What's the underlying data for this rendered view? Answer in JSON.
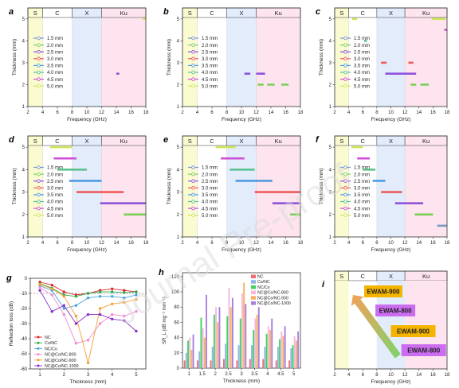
{
  "bands": {
    "labels": [
      "S",
      "C",
      "X",
      "Ku"
    ],
    "ranges": [
      [
        2,
        4
      ],
      [
        4,
        8
      ],
      [
        8,
        12
      ],
      [
        12,
        18
      ]
    ],
    "colors": [
      "#fbfbd2",
      "#ffffff",
      "#e3ecfb",
      "#fde4ee"
    ]
  },
  "freq_axis": {
    "xlabel": "Frequency (GHz)",
    "ticks": [
      2,
      4,
      6,
      8,
      10,
      12,
      14,
      16,
      18
    ],
    "xlim": [
      2,
      18
    ]
  },
  "thick_axis": {
    "ylabel": "Thickness (mm)",
    "ticks": [
      1,
      2,
      3,
      4,
      5
    ],
    "ylim": [
      1,
      5.5
    ]
  },
  "legend_thickness": {
    "labels": [
      "1.5 mm",
      "2.0 mm",
      "2.5 mm",
      "3.0 mm",
      "3.5 mm",
      "4.0 mm",
      "4.5 mm",
      "5.0 mm"
    ],
    "colors": [
      "#7b96c8",
      "#7ccf5a",
      "#8e52d9",
      "#ee5a5a",
      "#4f9adf",
      "#5bc28f",
      "#cf4fd6",
      "#cde85a"
    ]
  },
  "panels_bw": [
    {
      "label": "a",
      "bars": [
        {
          "t": 2.5,
          "x0": 14.0,
          "x1": 14.4
        },
        {
          "t": 5.0,
          "x0": 17.6,
          "x1": 18.0
        }
      ]
    },
    {
      "label": "b",
      "bars": [
        {
          "t": 2.5,
          "x0": 10.4,
          "x1": 11.2
        },
        {
          "t": 2.5,
          "x0": 12.0,
          "x1": 13.2
        },
        {
          "t": 2.0,
          "x0": 12.2,
          "x1": 13.0
        },
        {
          "t": 2.0,
          "x0": 13.5,
          "x1": 14.5
        },
        {
          "t": 2.0,
          "x0": 15.4,
          "x1": 16.4
        }
      ]
    },
    {
      "label": "c",
      "bars": [
        {
          "t": 5.0,
          "x0": 4.5,
          "x1": 5.2
        },
        {
          "t": 4.0,
          "x0": 6.2,
          "x1": 6.6
        },
        {
          "t": 3.0,
          "x0": 8.6,
          "x1": 9.4
        },
        {
          "t": 3.0,
          "x0": 12.5,
          "x1": 13.2
        },
        {
          "t": 2.5,
          "x0": 9.2,
          "x1": 13.6
        },
        {
          "t": 2.0,
          "x0": 12.8,
          "x1": 13.6
        },
        {
          "t": 2.0,
          "x0": 14.2,
          "x1": 15.4
        },
        {
          "t": 5.0,
          "x0": 15.8,
          "x1": 17.8
        },
        {
          "t": 4.5,
          "x0": 17.6,
          "x1": 18.0
        }
      ]
    },
    {
      "label": "d",
      "bars": [
        {
          "t": 5.0,
          "x0": 5.0,
          "x1": 8.0
        },
        {
          "t": 4.5,
          "x0": 5.5,
          "x1": 8.6
        },
        {
          "t": 4.0,
          "x0": 6.0,
          "x1": 10.0
        },
        {
          "t": 3.5,
          "x0": 7.6,
          "x1": 12.0
        },
        {
          "t": 3.0,
          "x0": 8.6,
          "x1": 15.0
        },
        {
          "t": 2.5,
          "x0": 11.8,
          "x1": 18.0
        },
        {
          "t": 2.0,
          "x0": 15.0,
          "x1": 18.0
        }
      ]
    },
    {
      "label": "e",
      "bars": [
        {
          "t": 5.0,
          "x0": 6.5,
          "x1": 9.2
        },
        {
          "t": 4.5,
          "x0": 7.2,
          "x1": 10.4
        },
        {
          "t": 4.0,
          "x0": 8.4,
          "x1": 11.8
        },
        {
          "t": 3.5,
          "x0": 9.2,
          "x1": 14.2
        },
        {
          "t": 3.0,
          "x0": 11.8,
          "x1": 18.0
        },
        {
          "t": 2.5,
          "x0": 14.2,
          "x1": 18.0
        },
        {
          "t": 2.0,
          "x0": 16.6,
          "x1": 18.0
        }
      ]
    },
    {
      "label": "f",
      "bars": [
        {
          "t": 5.0,
          "x0": 4.4,
          "x1": 6.0
        },
        {
          "t": 4.5,
          "x0": 5.2,
          "x1": 7.0
        },
        {
          "t": 4.0,
          "x0": 6.0,
          "x1": 7.8
        },
        {
          "t": 3.5,
          "x0": 7.4,
          "x1": 9.2
        },
        {
          "t": 3.0,
          "x0": 8.6,
          "x1": 11.6
        },
        {
          "t": 2.5,
          "x0": 10.6,
          "x1": 14.6
        },
        {
          "t": 2.0,
          "x0": 13.4,
          "x1": 16.0
        },
        {
          "t": 1.5,
          "x0": 16.6,
          "x1": 18.0
        }
      ]
    }
  ],
  "chart_data": [
    {
      "panel": "g",
      "type": "line",
      "xlabel": "Thickness (mm)",
      "ylabel": "Reflection loss (dB)",
      "x": [
        1.0,
        1.5,
        2.0,
        2.5,
        3.0,
        3.5,
        4.0,
        4.5,
        5.0
      ],
      "xticks": [
        1,
        2,
        3,
        4,
        5
      ],
      "ylim": [
        -60,
        0
      ],
      "yticks": [
        0,
        -10,
        -20,
        -30,
        -40,
        -50,
        -60
      ],
      "reference_line": -10,
      "series": [
        {
          "name": "NC",
          "color": "#e0242a",
          "values": [
            -2.5,
            -4.5,
            -9,
            -11,
            -10,
            -8,
            -7,
            -8,
            -9
          ]
        },
        {
          "name": "Co/NC",
          "color": "#2fa84a",
          "values": [
            -3.5,
            -6.5,
            -11,
            -12,
            -10,
            -9,
            -9,
            -9.5,
            -9
          ]
        },
        {
          "name": "NC/Co",
          "color": "#46a5d8",
          "values": [
            -5,
            -8,
            -20,
            -18,
            -13,
            -12,
            -12,
            -13,
            -11
          ]
        },
        {
          "name": "NC@Co/NC-800",
          "color": "#f28bd0",
          "values": [
            -6,
            -11,
            -24,
            -43,
            -41,
            -30,
            -24,
            -25,
            -22
          ]
        },
        {
          "name": "NC@Co/NC-900",
          "color": "#f4a035",
          "values": [
            -4,
            -7,
            -12,
            -25,
            -56,
            -20,
            -17,
            -16,
            -14
          ]
        },
        {
          "name": "NC@Co/NC-1000",
          "color": "#8a2fc8",
          "values": [
            -8,
            -22,
            -18,
            -30,
            -24,
            -24,
            -27,
            -28,
            -35
          ]
        }
      ]
    },
    {
      "panel": "h",
      "type": "bar",
      "xlabel": "Thickness (mm)",
      "ylabel": "SR_L (dB mg⁻¹ mm⁻¹)",
      "categories": [
        "1",
        "1.5",
        "2",
        "2.5",
        "3",
        "3.5",
        "4",
        "4.5",
        "5"
      ],
      "ylim": [
        0,
        125
      ],
      "yticks": [
        0,
        20,
        40,
        60,
        80,
        100,
        120
      ],
      "series": [
        {
          "name": "NC",
          "color": "#ee6e70",
          "values": [
            10,
            10,
            10,
            12,
            10,
            12,
            12,
            10,
            10
          ]
        },
        {
          "name": "Co/NC",
          "color": "#8fb3e8",
          "values": [
            20,
            22,
            28,
            32,
            30,
            30,
            28,
            28,
            26
          ]
        },
        {
          "name": "NC/Co",
          "color": "#3fd35e",
          "values": [
            36,
            66,
            70,
            68,
            65,
            50,
            45,
            38,
            30
          ]
        },
        {
          "name": "NC@Co/NC-800",
          "color": "#f6b7dc",
          "values": [
            40,
            52,
            80,
            105,
            98,
            65,
            55,
            48,
            42
          ]
        },
        {
          "name": "NC@Co/NC-900",
          "color": "#f7b062",
          "values": [
            24,
            40,
            60,
            80,
            112,
            70,
            50,
            42,
            36
          ]
        },
        {
          "name": "NC@Co/NC-1000",
          "color": "#a77fe0",
          "values": [
            44,
            96,
            80,
            92,
            84,
            80,
            65,
            55,
            48
          ]
        }
      ]
    }
  ],
  "panel_i": {
    "label": "i",
    "xlabel": "Frequency (GHz)",
    "labels": [
      {
        "text": "EWAM-900",
        "bg": "#f5b400",
        "fg": "#000000"
      },
      {
        "text": "EWAM-800",
        "bg": "#cc6cf0",
        "fg": "#ffffff"
      },
      {
        "text": "EWAM-900",
        "bg": "#f5b400",
        "fg": "#000000"
      },
      {
        "text": "EWAM-800",
        "bg": "#cc6cf0",
        "fg": "#ffffff"
      }
    ]
  },
  "watermark": "Journal Pre-proof"
}
